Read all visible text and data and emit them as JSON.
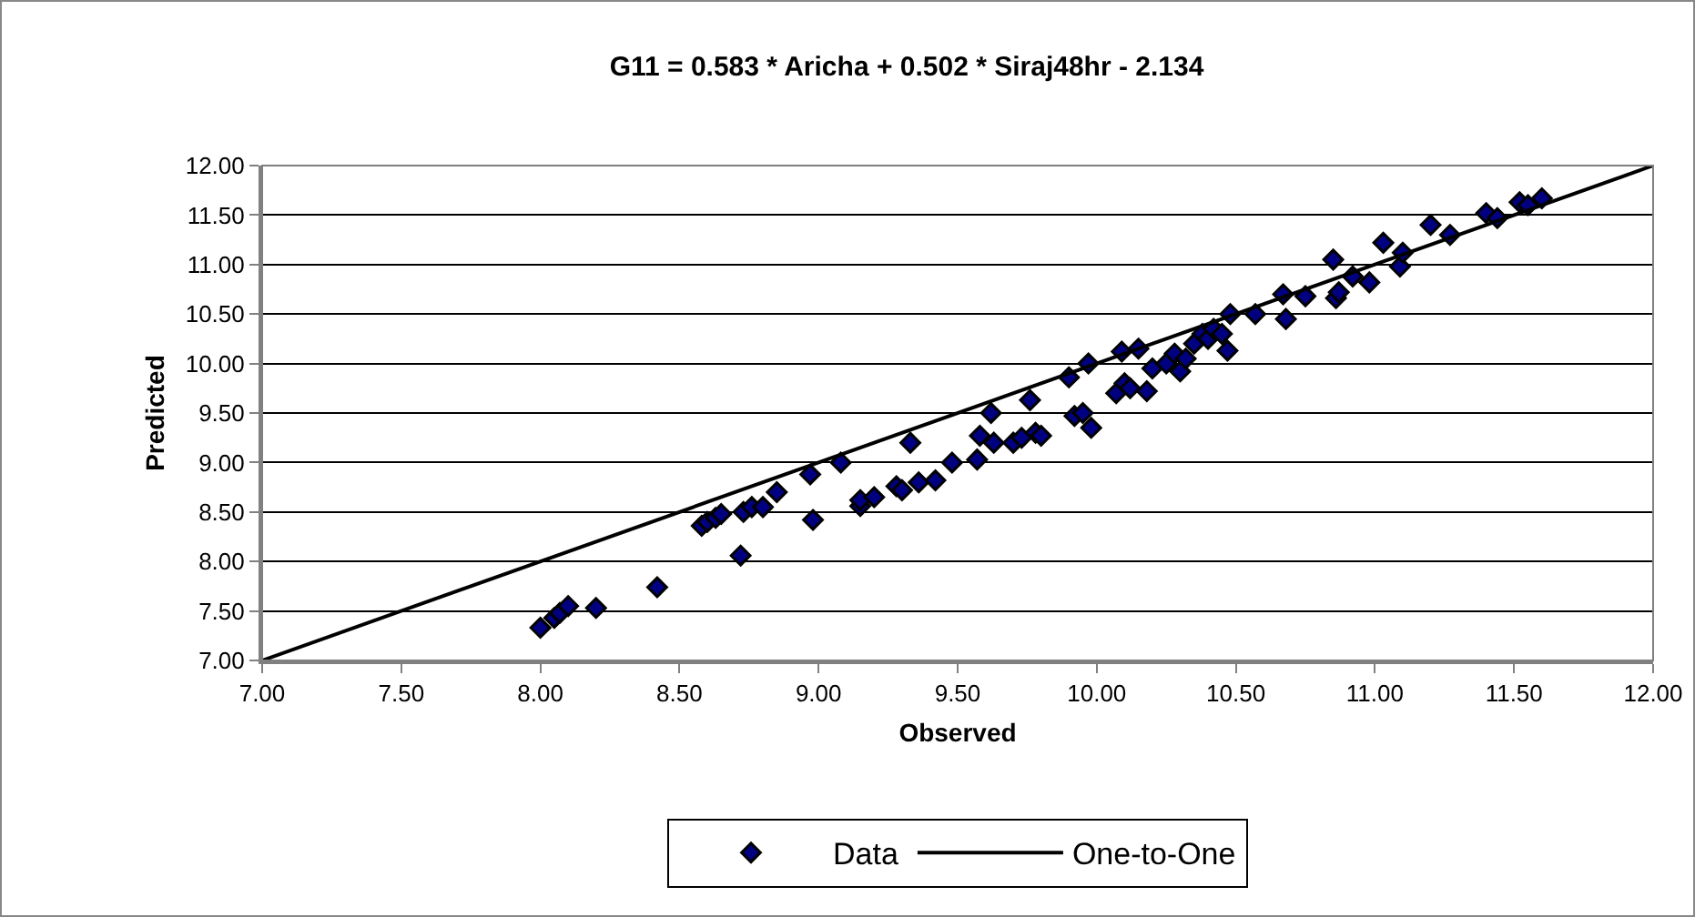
{
  "chart_data": {
    "type": "scatter",
    "title": "G11 = 0.583 * Aricha + 0.502 * Siraj48hr - 2.134",
    "xlabel": "Observed",
    "ylabel": "Predicted",
    "xlim": [
      7,
      12
    ],
    "ylim": [
      7,
      12
    ],
    "xticks": [
      {
        "value": 7,
        "label": "7.00"
      },
      {
        "value": 7.5,
        "label": "7.50"
      },
      {
        "value": 8,
        "label": "8.00"
      },
      {
        "value": 8.5,
        "label": "8.50"
      },
      {
        "value": 9,
        "label": "9.00"
      },
      {
        "value": 9.5,
        "label": "9.50"
      },
      {
        "value": 10,
        "label": "10.00"
      },
      {
        "value": 10.5,
        "label": "10.50"
      },
      {
        "value": 11,
        "label": "11.00"
      },
      {
        "value": 11.5,
        "label": "11.50"
      },
      {
        "value": 12,
        "label": "12.00"
      }
    ],
    "yticks": [
      {
        "value": 7,
        "label": "7.00"
      },
      {
        "value": 7.5,
        "label": "7.50"
      },
      {
        "value": 8,
        "label": "8.00"
      },
      {
        "value": 8.5,
        "label": "8.50"
      },
      {
        "value": 9,
        "label": "9.00"
      },
      {
        "value": 9.5,
        "label": "9.50"
      },
      {
        "value": 10,
        "label": "10.00"
      },
      {
        "value": 10.5,
        "label": "10.50"
      },
      {
        "value": 11,
        "label": "11.00"
      },
      {
        "value": 11.5,
        "label": "11.50"
      },
      {
        "value": 12,
        "label": "12.00"
      }
    ],
    "grid": "y",
    "legend": "bottom",
    "series": [
      {
        "name": "Data",
        "marker": "diamond",
        "color": "#000080",
        "x": [
          8.0,
          8.05,
          8.07,
          8.1,
          8.2,
          8.42,
          8.58,
          8.6,
          8.63,
          8.65,
          8.72,
          8.73,
          8.76,
          8.8,
          8.85,
          8.97,
          8.98,
          9.08,
          9.15,
          9.15,
          9.2,
          9.28,
          9.3,
          9.33,
          9.36,
          9.42,
          9.48,
          9.57,
          9.58,
          9.62,
          9.63,
          9.7,
          9.73,
          9.76,
          9.78,
          9.8,
          9.9,
          9.92,
          9.95,
          9.97,
          9.98,
          10.07,
          10.09,
          10.1,
          10.12,
          10.15,
          10.18,
          10.2,
          10.25,
          10.28,
          10.3,
          10.32,
          10.35,
          10.38,
          10.4,
          10.42,
          10.45,
          10.47,
          10.48,
          10.57,
          10.67,
          10.68,
          10.75,
          10.85,
          10.86,
          10.87,
          10.92,
          10.98,
          11.03,
          11.09,
          11.1,
          11.2,
          11.27,
          11.4,
          11.44,
          11.52,
          11.55,
          11.6
        ],
        "values": [
          7.33,
          7.43,
          7.48,
          7.55,
          7.53,
          7.74,
          8.36,
          8.4,
          8.44,
          8.48,
          8.06,
          8.5,
          8.55,
          8.55,
          8.7,
          8.88,
          8.42,
          9.0,
          8.56,
          8.62,
          8.65,
          8.76,
          8.72,
          9.2,
          8.8,
          8.82,
          9.0,
          9.03,
          9.27,
          9.5,
          9.2,
          9.2,
          9.25,
          9.63,
          9.3,
          9.27,
          9.86,
          9.47,
          9.5,
          10.0,
          9.35,
          9.7,
          10.12,
          9.8,
          9.75,
          10.15,
          9.72,
          9.95,
          10.0,
          10.1,
          9.92,
          10.05,
          10.2,
          10.3,
          10.25,
          10.35,
          10.3,
          10.13,
          10.5,
          10.5,
          10.7,
          10.45,
          10.68,
          11.05,
          10.66,
          10.72,
          10.88,
          10.82,
          11.22,
          10.98,
          11.12,
          11.4,
          11.3,
          11.52,
          11.47,
          11.63,
          11.6,
          11.67
        ]
      },
      {
        "name": "One-to-One",
        "type": "line",
        "marker": "none",
        "line_style": "solid",
        "color": "#000000",
        "x": [
          7,
          12
        ],
        "values": [
          7,
          12
        ]
      }
    ]
  }
}
